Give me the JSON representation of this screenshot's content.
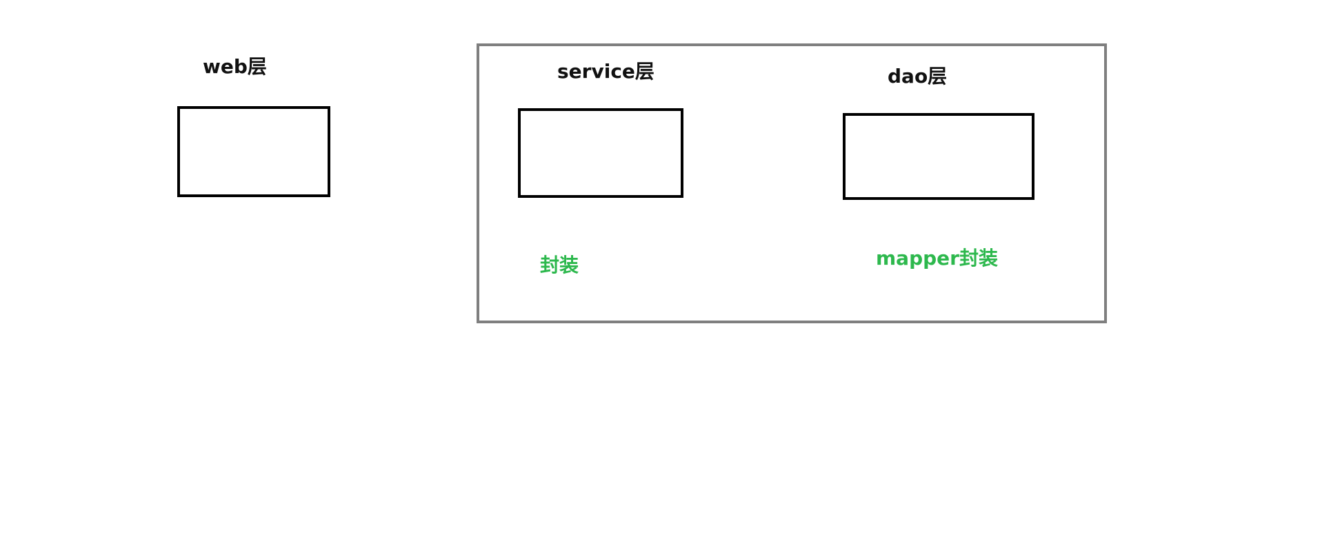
{
  "colors": {
    "background": "#ffffff",
    "box_border": "#000000",
    "group_border": "#7f7f7f",
    "label_text": "#111111",
    "note_text": "#2db84d"
  },
  "web": {
    "label": "web层"
  },
  "backend_group": {
    "service": {
      "label": "service层",
      "note": "封装"
    },
    "dao": {
      "label": "dao层",
      "note": "mapper封装"
    }
  }
}
